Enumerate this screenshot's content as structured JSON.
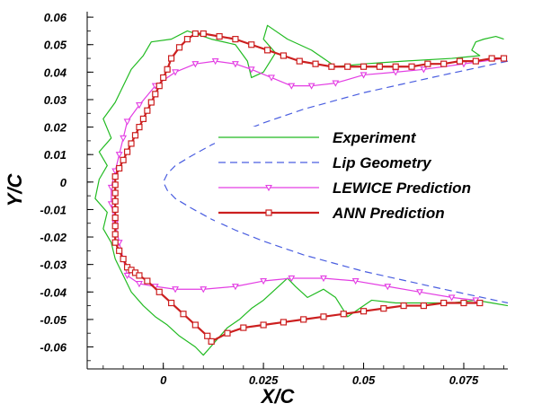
{
  "chart_data": {
    "type": "line",
    "xlabel": "X/C",
    "ylabel": "Y/C",
    "xlim": [
      -0.019,
      0.086
    ],
    "ylim": [
      -0.068,
      0.062
    ],
    "x_ticks": [
      0,
      0.025,
      0.05,
      0.075
    ],
    "x_tick_labels": [
      "0",
      "0.025",
      "0.05",
      "0.075"
    ],
    "y_ticks": [
      0.06,
      0.05,
      0.04,
      0.03,
      0.02,
      0.01,
      0,
      -0.01,
      -0.02,
      -0.03,
      -0.04,
      -0.05,
      -0.06
    ],
    "y_tick_labels": [
      "0.06",
      "0.05",
      "0.04",
      "0.03",
      "0.02",
      "0.01",
      "0",
      "-0.01",
      "-0.02",
      "-0.03",
      "-0.04",
      "-0.05",
      "-0.06"
    ],
    "grid": false,
    "legend_position": "center-right",
    "series": [
      {
        "name": "Experiment",
        "color": "#22bb22",
        "style": "solid",
        "marker": "none",
        "points": [
          [
            0.085,
            0.052
          ],
          [
            0.083,
            0.053
          ],
          [
            0.08,
            0.052
          ],
          [
            0.078,
            0.051
          ],
          [
            0.077,
            0.048
          ],
          [
            0.079,
            0.046
          ],
          [
            0.072,
            0.045
          ],
          [
            0.06,
            0.044
          ],
          [
            0.05,
            0.043
          ],
          [
            0.043,
            0.042
          ],
          [
            0.037,
            0.048
          ],
          [
            0.031,
            0.052
          ],
          [
            0.026,
            0.057
          ],
          [
            0.025,
            0.052
          ],
          [
            0.028,
            0.047
          ],
          [
            0.025,
            0.04
          ],
          [
            0.022,
            0.038
          ],
          [
            0.021,
            0.044
          ],
          [
            0.018,
            0.05
          ],
          [
            0.012,
            0.052
          ],
          [
            0.006,
            0.055
          ],
          [
            0.002,
            0.052
          ],
          [
            -0.003,
            0.051
          ],
          [
            -0.005,
            0.046
          ],
          [
            -0.008,
            0.041
          ],
          [
            -0.01,
            0.035
          ],
          [
            -0.012,
            0.029
          ],
          [
            -0.015,
            0.023
          ],
          [
            -0.013,
            0.016
          ],
          [
            -0.016,
            0.011
          ],
          [
            -0.014,
            0.006
          ],
          [
            -0.016,
            0.001
          ],
          [
            -0.017,
            -0.006
          ],
          [
            -0.014,
            -0.011
          ],
          [
            -0.015,
            -0.017
          ],
          [
            -0.013,
            -0.022
          ],
          [
            -0.012,
            -0.028
          ],
          [
            -0.01,
            -0.034
          ],
          [
            -0.008,
            -0.04
          ],
          [
            -0.005,
            -0.045
          ],
          [
            -0.002,
            -0.049
          ],
          [
            0.001,
            -0.052
          ],
          [
            0.004,
            -0.056
          ],
          [
            0.008,
            -0.06
          ],
          [
            0.01,
            -0.063
          ],
          [
            0.013,
            -0.058
          ],
          [
            0.016,
            -0.053
          ],
          [
            0.019,
            -0.05
          ],
          [
            0.022,
            -0.046
          ],
          [
            0.025,
            -0.043
          ],
          [
            0.028,
            -0.039
          ],
          [
            0.031,
            -0.035
          ],
          [
            0.033,
            -0.038
          ],
          [
            0.036,
            -0.042
          ],
          [
            0.04,
            -0.039
          ],
          [
            0.043,
            -0.042
          ],
          [
            0.046,
            -0.049
          ],
          [
            0.049,
            -0.046
          ],
          [
            0.052,
            -0.043
          ],
          [
            0.058,
            -0.044
          ],
          [
            0.065,
            -0.044
          ],
          [
            0.072,
            -0.044
          ],
          [
            0.078,
            -0.043
          ],
          [
            0.082,
            -0.044
          ],
          [
            0.086,
            -0.045
          ]
        ]
      },
      {
        "name": "Lip Geometry",
        "color": "#4a5ee0",
        "style": "dashed",
        "marker": "none",
        "points": [
          [
            0.086,
            0.044
          ],
          [
            0.07,
            0.039
          ],
          [
            0.05,
            0.0325
          ],
          [
            0.035,
            0.0265
          ],
          [
            0.025,
            0.0215
          ],
          [
            0.018,
            0.0175
          ],
          [
            0.012,
            0.0135
          ],
          [
            0.007,
            0.0095
          ],
          [
            0.003,
            0.006
          ],
          [
            0.001,
            0.003
          ],
          [
            0.0,
            0.0
          ],
          [
            0.001,
            -0.003
          ],
          [
            0.003,
            -0.006
          ],
          [
            0.007,
            -0.0095
          ],
          [
            0.012,
            -0.0135
          ],
          [
            0.018,
            -0.0175
          ],
          [
            0.025,
            -0.0215
          ],
          [
            0.035,
            -0.0265
          ],
          [
            0.05,
            -0.0325
          ],
          [
            0.07,
            -0.039
          ],
          [
            0.086,
            -0.044
          ]
        ]
      },
      {
        "name": "LEWICE Prediction",
        "color": "#e33de3",
        "style": "solid",
        "marker": "triangle-down",
        "points": [
          [
            0.085,
            0.045
          ],
          [
            0.075,
            0.043
          ],
          [
            0.065,
            0.041
          ],
          [
            0.058,
            0.04
          ],
          [
            0.05,
            0.039
          ],
          [
            0.043,
            0.036
          ],
          [
            0.037,
            0.035
          ],
          [
            0.032,
            0.035
          ],
          [
            0.027,
            0.038
          ],
          [
            0.022,
            0.041
          ],
          [
            0.018,
            0.043
          ],
          [
            0.013,
            0.044
          ],
          [
            0.008,
            0.043
          ],
          [
            0.003,
            0.04
          ],
          [
            -0.002,
            0.035
          ],
          [
            -0.006,
            0.028
          ],
          [
            -0.009,
            0.022
          ],
          [
            -0.01,
            0.016
          ],
          [
            -0.011,
            0.01
          ],
          [
            -0.012,
            0.004
          ],
          [
            -0.013,
            -0.002
          ],
          [
            -0.013,
            -0.008
          ],
          [
            -0.012,
            -0.015
          ],
          [
            -0.011,
            -0.022
          ],
          [
            -0.01,
            -0.028
          ],
          [
            -0.009,
            -0.034
          ],
          [
            -0.006,
            -0.037
          ],
          [
            -0.002,
            -0.038
          ],
          [
            0.003,
            -0.039
          ],
          [
            0.01,
            -0.039
          ],
          [
            0.018,
            -0.038
          ],
          [
            0.025,
            -0.036
          ],
          [
            0.032,
            -0.035
          ],
          [
            0.04,
            -0.035
          ],
          [
            0.048,
            -0.036
          ],
          [
            0.056,
            -0.038
          ],
          [
            0.064,
            -0.04
          ],
          [
            0.072,
            -0.042
          ],
          [
            0.078,
            -0.043
          ]
        ]
      },
      {
        "name": "ANN Prediction",
        "color": "#cc1f1f",
        "style": "solid",
        "marker": "square",
        "points": [
          [
            0.085,
            0.045
          ],
          [
            0.082,
            0.045
          ],
          [
            0.078,
            0.044
          ],
          [
            0.074,
            0.044
          ],
          [
            0.07,
            0.043
          ],
          [
            0.066,
            0.043
          ],
          [
            0.062,
            0.042
          ],
          [
            0.058,
            0.042
          ],
          [
            0.054,
            0.042
          ],
          [
            0.05,
            0.042
          ],
          [
            0.046,
            0.042
          ],
          [
            0.042,
            0.042
          ],
          [
            0.038,
            0.043
          ],
          [
            0.034,
            0.044
          ],
          [
            0.03,
            0.046
          ],
          [
            0.026,
            0.048
          ],
          [
            0.022,
            0.05
          ],
          [
            0.018,
            0.052
          ],
          [
            0.014,
            0.053
          ],
          [
            0.01,
            0.054
          ],
          [
            0.008,
            0.054
          ],
          [
            0.006,
            0.052
          ],
          [
            0.004,
            0.049
          ],
          [
            0.002,
            0.045
          ],
          [
            0.001,
            0.041
          ],
          [
            0.0,
            0.038
          ],
          [
            -0.001,
            0.035
          ],
          [
            -0.002,
            0.032
          ],
          [
            -0.003,
            0.029
          ],
          [
            -0.004,
            0.026
          ],
          [
            -0.005,
            0.023
          ],
          [
            -0.006,
            0.02
          ],
          [
            -0.007,
            0.017
          ],
          [
            -0.008,
            0.014
          ],
          [
            -0.009,
            0.011
          ],
          [
            -0.01,
            0.008
          ],
          [
            -0.011,
            0.005
          ],
          [
            -0.012,
            0.002
          ],
          [
            -0.012,
            -0.001
          ],
          [
            -0.012,
            -0.004
          ],
          [
            -0.012,
            -0.007
          ],
          [
            -0.012,
            -0.01
          ],
          [
            -0.012,
            -0.013
          ],
          [
            -0.012,
            -0.016
          ],
          [
            -0.012,
            -0.019
          ],
          [
            -0.012,
            -0.022
          ],
          [
            -0.011,
            -0.025
          ],
          [
            -0.01,
            -0.028
          ],
          [
            -0.009,
            -0.031
          ],
          [
            -0.008,
            -0.032
          ],
          [
            -0.007,
            -0.033
          ],
          [
            -0.006,
            -0.034
          ],
          [
            -0.004,
            -0.036
          ],
          [
            -0.001,
            -0.04
          ],
          [
            0.002,
            -0.044
          ],
          [
            0.005,
            -0.048
          ],
          [
            0.008,
            -0.052
          ],
          [
            0.011,
            -0.056
          ],
          [
            0.012,
            -0.058
          ],
          [
            0.016,
            -0.055
          ],
          [
            0.02,
            -0.053
          ],
          [
            0.025,
            -0.052
          ],
          [
            0.03,
            -0.051
          ],
          [
            0.035,
            -0.05
          ],
          [
            0.04,
            -0.049
          ],
          [
            0.045,
            -0.048
          ],
          [
            0.05,
            -0.047
          ],
          [
            0.055,
            -0.046
          ],
          [
            0.06,
            -0.045
          ],
          [
            0.065,
            -0.045
          ],
          [
            0.07,
            -0.044
          ],
          [
            0.075,
            -0.044
          ],
          [
            0.079,
            -0.044
          ]
        ]
      }
    ]
  }
}
